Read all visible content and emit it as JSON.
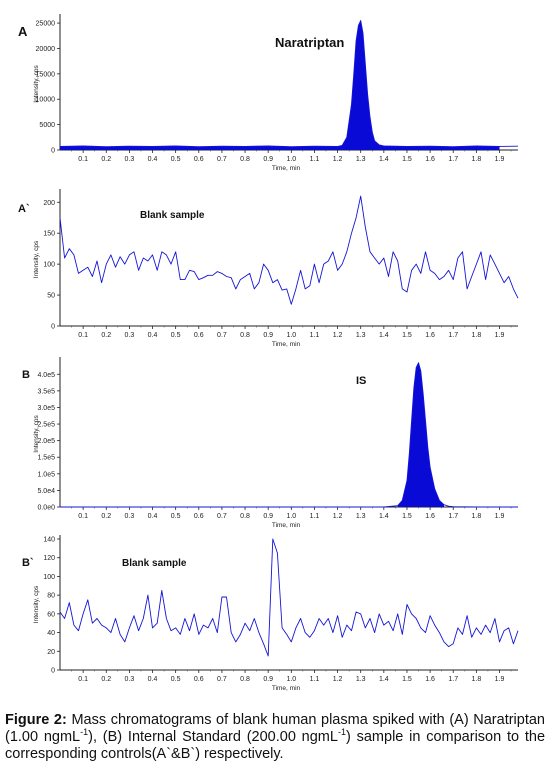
{
  "figure": {
    "caption_label": "Figure 2:",
    "caption_text_1": " Mass chromatograms of blank human plasma spiked with (A) Naratriptan (1.00 ngmL",
    "caption_sup_1": "-1",
    "caption_text_2": "), (B) Internal Standard (200.00 ngmL",
    "caption_sup_2": "-1",
    "caption_text_3": ") sample in comparison to the corresponding controls(A`&B`) respectively."
  },
  "chart_data": [
    {
      "type": "line",
      "panel": "A",
      "annotation": "Naratriptan",
      "xlabel": "Time, min",
      "ylabel": "Intensity, cps",
      "xlim": [
        0.0,
        1.98
      ],
      "ylim": [
        0,
        26000
      ],
      "xticks": [
        "0.1",
        "0.2",
        "0.3",
        "0.4",
        "0.5",
        "0.6",
        "0.7",
        "0.8",
        "0.9",
        "1.0",
        "1.1",
        "1.2",
        "1.3",
        "1.4",
        "1.5",
        "1.6",
        "1.7",
        "1.8",
        "1.9"
      ],
      "yticks": [
        "0",
        "5000",
        "10000",
        "15000",
        "20000",
        "25000"
      ],
      "filled_peak": true,
      "x": [
        0.0,
        0.1,
        0.2,
        0.3,
        0.4,
        0.5,
        0.6,
        0.7,
        0.8,
        0.9,
        1.0,
        1.1,
        1.2,
        1.22,
        1.24,
        1.26,
        1.27,
        1.28,
        1.29,
        1.3,
        1.31,
        1.32,
        1.33,
        1.34,
        1.35,
        1.36,
        1.38,
        1.4,
        1.5,
        1.6,
        1.7,
        1.8,
        1.9,
        1.98
      ],
      "y": [
        700,
        800,
        650,
        750,
        700,
        800,
        650,
        750,
        700,
        800,
        650,
        750,
        700,
        900,
        2500,
        9000,
        15000,
        21500,
        24500,
        25500,
        23000,
        17000,
        11000,
        6500,
        3500,
        1800,
        1000,
        800,
        700,
        750,
        650,
        800,
        700,
        750
      ]
    },
    {
      "type": "line",
      "panel": "A`",
      "annotation": "Blank sample",
      "xlabel": "Time, min",
      "ylabel": "Intensity, cps",
      "xlim": [
        0.0,
        1.98
      ],
      "ylim": [
        0,
        215
      ],
      "xticks": [
        "0.1",
        "0.2",
        "0.3",
        "0.4",
        "0.5",
        "0.6",
        "0.7",
        "0.8",
        "0.9",
        "1.0",
        "1.1",
        "1.2",
        "1.3",
        "1.4",
        "1.5",
        "1.6",
        "1.7",
        "1.8",
        "1.9"
      ],
      "yticks": [
        "0",
        "50",
        "100",
        "150",
        "200"
      ],
      "filled_peak": false,
      "x": [
        0.0,
        0.02,
        0.04,
        0.06,
        0.08,
        0.1,
        0.12,
        0.14,
        0.16,
        0.18,
        0.2,
        0.22,
        0.24,
        0.26,
        0.28,
        0.3,
        0.32,
        0.34,
        0.36,
        0.38,
        0.4,
        0.42,
        0.44,
        0.46,
        0.48,
        0.5,
        0.52,
        0.54,
        0.56,
        0.58,
        0.6,
        0.62,
        0.64,
        0.66,
        0.68,
        0.7,
        0.72,
        0.74,
        0.76,
        0.78,
        0.8,
        0.82,
        0.84,
        0.86,
        0.88,
        0.9,
        0.92,
        0.94,
        0.96,
        0.98,
        1.0,
        1.02,
        1.04,
        1.06,
        1.08,
        1.1,
        1.12,
        1.14,
        1.16,
        1.18,
        1.2,
        1.22,
        1.24,
        1.26,
        1.28,
        1.3,
        1.32,
        1.34,
        1.36,
        1.38,
        1.4,
        1.42,
        1.44,
        1.46,
        1.48,
        1.5,
        1.52,
        1.54,
        1.56,
        1.58,
        1.6,
        1.62,
        1.64,
        1.66,
        1.68,
        1.7,
        1.72,
        1.74,
        1.76,
        1.78,
        1.8,
        1.82,
        1.84,
        1.86,
        1.88,
        1.9,
        1.92,
        1.94,
        1.96,
        1.98
      ],
      "y": [
        175,
        110,
        125,
        115,
        85,
        90,
        95,
        80,
        105,
        70,
        100,
        115,
        95,
        112,
        100,
        115,
        120,
        90,
        110,
        105,
        115,
        90,
        120,
        115,
        100,
        120,
        75,
        75,
        90,
        88,
        75,
        78,
        82,
        82,
        88,
        85,
        80,
        78,
        60,
        75,
        80,
        85,
        60,
        70,
        100,
        90,
        70,
        75,
        58,
        60,
        35,
        60,
        90,
        60,
        65,
        100,
        70,
        100,
        105,
        120,
        90,
        100,
        120,
        150,
        175,
        210,
        160,
        120,
        110,
        100,
        110,
        80,
        120,
        105,
        60,
        55,
        90,
        100,
        85,
        120,
        90,
        85,
        75,
        80,
        90,
        75,
        110,
        120,
        60,
        80,
        100,
        120,
        75,
        115,
        100,
        85,
        70,
        80,
        60,
        45
      ]
    },
    {
      "type": "line",
      "panel": "B",
      "annotation": "IS",
      "xlabel": "Time, min",
      "ylabel": "Intensity, cps",
      "xlim": [
        0.0,
        1.98
      ],
      "ylim": [
        0,
        440000
      ],
      "xticks": [
        "0.1",
        "0.2",
        "0.3",
        "0.4",
        "0.5",
        "0.6",
        "0.7",
        "0.8",
        "0.9",
        "1.0",
        "1.1",
        "1.2",
        "1.3",
        "1.4",
        "1.5",
        "1.6",
        "1.7",
        "1.8",
        "1.9"
      ],
      "yticks": [
        "0.0e0",
        "5.0e4",
        "1.0e5",
        "1.5e5",
        "2.0e5",
        "2.5e5",
        "3.0e5",
        "3.5e5",
        "4.0e5"
      ],
      "filled_peak": true,
      "x": [
        0.0,
        0.5,
        1.0,
        1.4,
        1.46,
        1.48,
        1.5,
        1.51,
        1.52,
        1.53,
        1.54,
        1.55,
        1.56,
        1.57,
        1.58,
        1.59,
        1.6,
        1.62,
        1.64,
        1.66,
        1.68,
        1.7,
        1.8,
        1.98
      ],
      "y": [
        0,
        0,
        0,
        0,
        4000,
        20000,
        80000,
        160000,
        260000,
        360000,
        420000,
        435000,
        410000,
        340000,
        260000,
        180000,
        120000,
        55000,
        20000,
        7000,
        2500,
        1000,
        0,
        0
      ]
    },
    {
      "type": "line",
      "panel": "B`",
      "annotation": "Blank sample",
      "xlabel": "Time, min",
      "ylabel": "Intensity, cps",
      "xlim": [
        0.0,
        1.98
      ],
      "ylim": [
        0,
        140
      ],
      "xticks": [
        "0.1",
        "0.2",
        "0.3",
        "0.4",
        "0.5",
        "0.6",
        "0.7",
        "0.8",
        "0.9",
        "1.0",
        "1.1",
        "1.2",
        "1.3",
        "1.4",
        "1.5",
        "1.6",
        "1.7",
        "1.8",
        "1.9"
      ],
      "yticks": [
        "0",
        "20",
        "40",
        "60",
        "80",
        "100",
        "120",
        "140"
      ],
      "filled_peak": false,
      "x": [
        0.0,
        0.02,
        0.04,
        0.06,
        0.08,
        0.1,
        0.12,
        0.14,
        0.16,
        0.18,
        0.2,
        0.22,
        0.24,
        0.26,
        0.28,
        0.3,
        0.32,
        0.34,
        0.36,
        0.38,
        0.4,
        0.42,
        0.44,
        0.46,
        0.48,
        0.5,
        0.52,
        0.54,
        0.56,
        0.58,
        0.6,
        0.62,
        0.64,
        0.66,
        0.68,
        0.7,
        0.72,
        0.74,
        0.76,
        0.78,
        0.8,
        0.82,
        0.84,
        0.86,
        0.88,
        0.9,
        0.92,
        0.94,
        0.96,
        0.98,
        1.0,
        1.02,
        1.04,
        1.06,
        1.08,
        1.1,
        1.12,
        1.14,
        1.16,
        1.18,
        1.2,
        1.22,
        1.24,
        1.26,
        1.28,
        1.3,
        1.32,
        1.34,
        1.36,
        1.38,
        1.4,
        1.42,
        1.44,
        1.46,
        1.48,
        1.5,
        1.52,
        1.54,
        1.56,
        1.58,
        1.6,
        1.62,
        1.64,
        1.66,
        1.68,
        1.7,
        1.72,
        1.74,
        1.76,
        1.78,
        1.8,
        1.82,
        1.84,
        1.86,
        1.88,
        1.9,
        1.92,
        1.94,
        1.96,
        1.98
      ],
      "y": [
        62,
        55,
        72,
        48,
        42,
        60,
        75,
        50,
        55,
        48,
        45,
        40,
        55,
        38,
        30,
        45,
        58,
        42,
        55,
        80,
        45,
        50,
        85,
        55,
        42,
        45,
        38,
        55,
        42,
        60,
        38,
        48,
        45,
        55,
        40,
        78,
        78,
        40,
        30,
        38,
        50,
        42,
        55,
        40,
        28,
        15,
        140,
        125,
        45,
        38,
        30,
        45,
        55,
        40,
        35,
        42,
        55,
        48,
        55,
        40,
        58,
        35,
        48,
        42,
        62,
        60,
        45,
        55,
        40,
        60,
        48,
        52,
        42,
        60,
        38,
        70,
        60,
        55,
        45,
        40,
        58,
        48,
        40,
        30,
        25,
        28,
        45,
        38,
        58,
        35,
        45,
        38,
        48,
        40,
        55,
        30,
        42,
        45,
        28,
        42
      ]
    }
  ]
}
